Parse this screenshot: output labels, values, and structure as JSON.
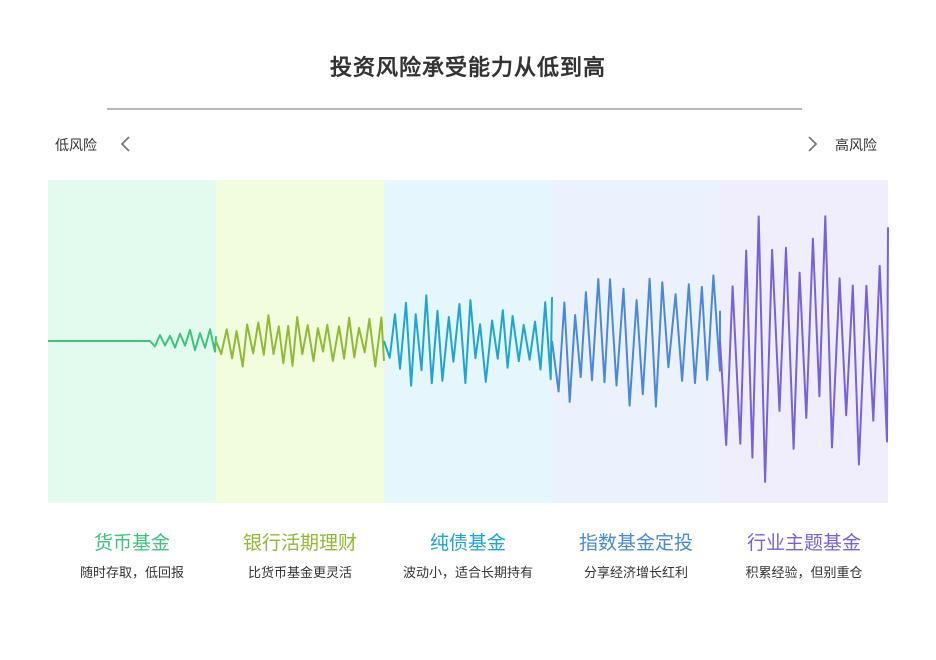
{
  "title": "投资风险承受能力从低到高",
  "low_risk_label": "低风险",
  "high_risk_label": "高风险",
  "icons": {
    "left": "chevron-left-icon",
    "right": "chevron-right-icon"
  },
  "categories": [
    {
      "name": "货币基金",
      "desc": "随时存取，低回报",
      "color": "#3ec37f",
      "bg": "#e3fbee"
    },
    {
      "name": "银行活期理财",
      "desc": "比货币基金更灵活",
      "color": "#91b936",
      "bg": "#f1fddd"
    },
    {
      "name": "纯债基金",
      "desc": "波动小，适合长期持有",
      "color": "#1ea5d2",
      "bg": "#e5f6fd"
    },
    {
      "name": "指数基金定投",
      "desc": "分享经济增长红利",
      "color": "#4a88d9",
      "bg": "#ebf2fd"
    },
    {
      "name": "行业主题基金",
      "desc": "积累经验，但别重仓",
      "color": "#7a62d6",
      "bg": "#f0eefd"
    }
  ]
}
